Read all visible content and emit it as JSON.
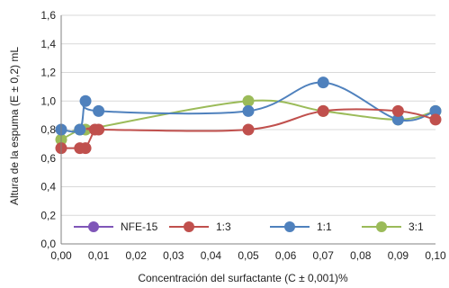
{
  "chart_data": {
    "type": "scatter",
    "xlabel": "Concentración del surfactante (C ± 0,001)%",
    "ylabel": "Altura de la espuma (E ± 0,2) mL",
    "xlim": [
      0,
      0.1
    ],
    "ylim": [
      0,
      1.6
    ],
    "x_ticks": [
      "0,00",
      "0,01",
      "0,02",
      "0,03",
      "0,04",
      "0,05",
      "0,06",
      "0,07",
      "0,08",
      "0,09",
      "0,10"
    ],
    "y_ticks": [
      "0,0",
      "0,2",
      "0,4",
      "0,6",
      "0,8",
      "1,0",
      "1,2",
      "1,4",
      "1,6"
    ],
    "grid": "horizontal",
    "smoothed_lines": true,
    "legend_position": "bottom-inside",
    "series": [
      {
        "name": "NFE-15",
        "color": "#7f56b8",
        "points": []
      },
      {
        "name": "1:3",
        "color": "#c0504d",
        "points": [
          [
            0.0,
            0.67
          ],
          [
            0.005,
            0.67
          ],
          [
            0.0065,
            0.67
          ],
          [
            0.009,
            0.8
          ],
          [
            0.01,
            0.8
          ],
          [
            0.05,
            0.8
          ],
          [
            0.07,
            0.93
          ],
          [
            0.09,
            0.93
          ],
          [
            0.1,
            0.87
          ]
        ]
      },
      {
        "name": "1:1",
        "color": "#4f81bd",
        "points": [
          [
            0.0,
            0.8
          ],
          [
            0.005,
            0.8
          ],
          [
            0.0065,
            1.0
          ],
          [
            0.01,
            0.93
          ],
          [
            0.05,
            0.93
          ],
          [
            0.07,
            1.13
          ],
          [
            0.09,
            0.87
          ],
          [
            0.1,
            0.93
          ]
        ]
      },
      {
        "name": "3:1",
        "color": "#9bbb59",
        "points": [
          [
            0.0,
            0.73
          ],
          [
            0.005,
            0.8
          ],
          [
            0.0065,
            0.8
          ],
          [
            0.05,
            1.0
          ],
          [
            0.07,
            0.93
          ],
          [
            0.09,
            0.87
          ],
          [
            0.1,
            0.93
          ]
        ]
      }
    ]
  }
}
